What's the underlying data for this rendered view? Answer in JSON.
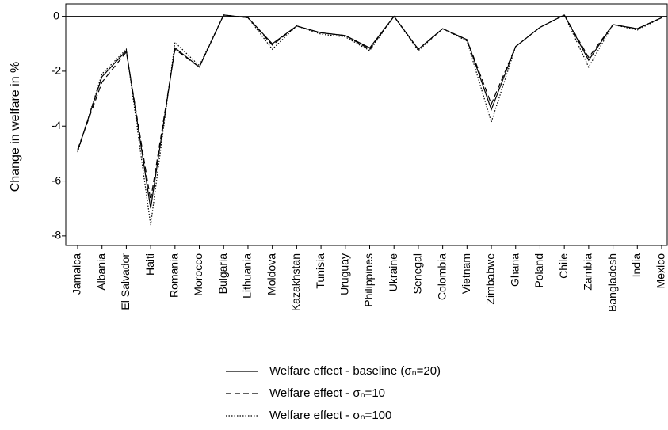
{
  "chart_data": {
    "type": "line",
    "y_label": "Change in welfare in %",
    "categories": [
      "Jamaica",
      "Albania",
      "El Salvador",
      "Haiti",
      "Romania",
      "Morocco",
      "Bulgaria",
      "Lithuania",
      "Moldova",
      "Kazakhstan",
      "Tunisia",
      "Uruguay",
      "Philippines",
      "Ukraine",
      "Senegal",
      "Colombia",
      "Vietnam",
      "Zimbabwe",
      "Ghana",
      "Poland",
      "Chile",
      "Zambia",
      "Bangladesh",
      "India",
      "Mexico"
    ],
    "series": [
      {
        "name": "Welfare effect  - baseline (σₙ=20)",
        "color": "#000000",
        "line_style": "solid",
        "values": [
          -4.9,
          -2.2,
          -1.25,
          -7.0,
          -1.15,
          -1.85,
          0.05,
          -0.05,
          -1.0,
          -0.35,
          -0.6,
          -0.7,
          -1.15,
          0.0,
          -1.2,
          -0.45,
          -0.85,
          -3.4,
          -1.1,
          -0.4,
          0.05,
          -1.6,
          -0.3,
          -0.45,
          -0.05
        ]
      },
      {
        "name": "Welfare effect  - σₙ=10",
        "color": "#000000",
        "line_style": "dashed",
        "values": [
          -4.85,
          -2.4,
          -1.3,
          -6.7,
          -1.2,
          -1.85,
          0.05,
          -0.05,
          -1.05,
          -0.35,
          -0.6,
          -0.7,
          -1.2,
          0.0,
          -1.2,
          -0.45,
          -0.85,
          -3.2,
          -1.1,
          -0.4,
          0.05,
          -1.5,
          -0.3,
          -0.45,
          -0.05
        ]
      },
      {
        "name": "Welfare effect  - σₙ=100",
        "color": "#000000",
        "line_style": "dotted",
        "values": [
          -4.95,
          -2.1,
          -1.2,
          -7.6,
          -0.95,
          -1.8,
          0.05,
          -0.05,
          -1.2,
          -0.35,
          -0.65,
          -0.75,
          -1.25,
          0.0,
          -1.25,
          -0.45,
          -0.9,
          -3.85,
          -1.1,
          -0.4,
          0.05,
          -1.85,
          -0.3,
          -0.5,
          -0.05
        ]
      }
    ],
    "ylim": [
      -8.35,
      0.45
    ],
    "yticks": [
      -8,
      -6,
      -4,
      -2,
      0
    ],
    "yline": 0,
    "legend": "bottom"
  }
}
